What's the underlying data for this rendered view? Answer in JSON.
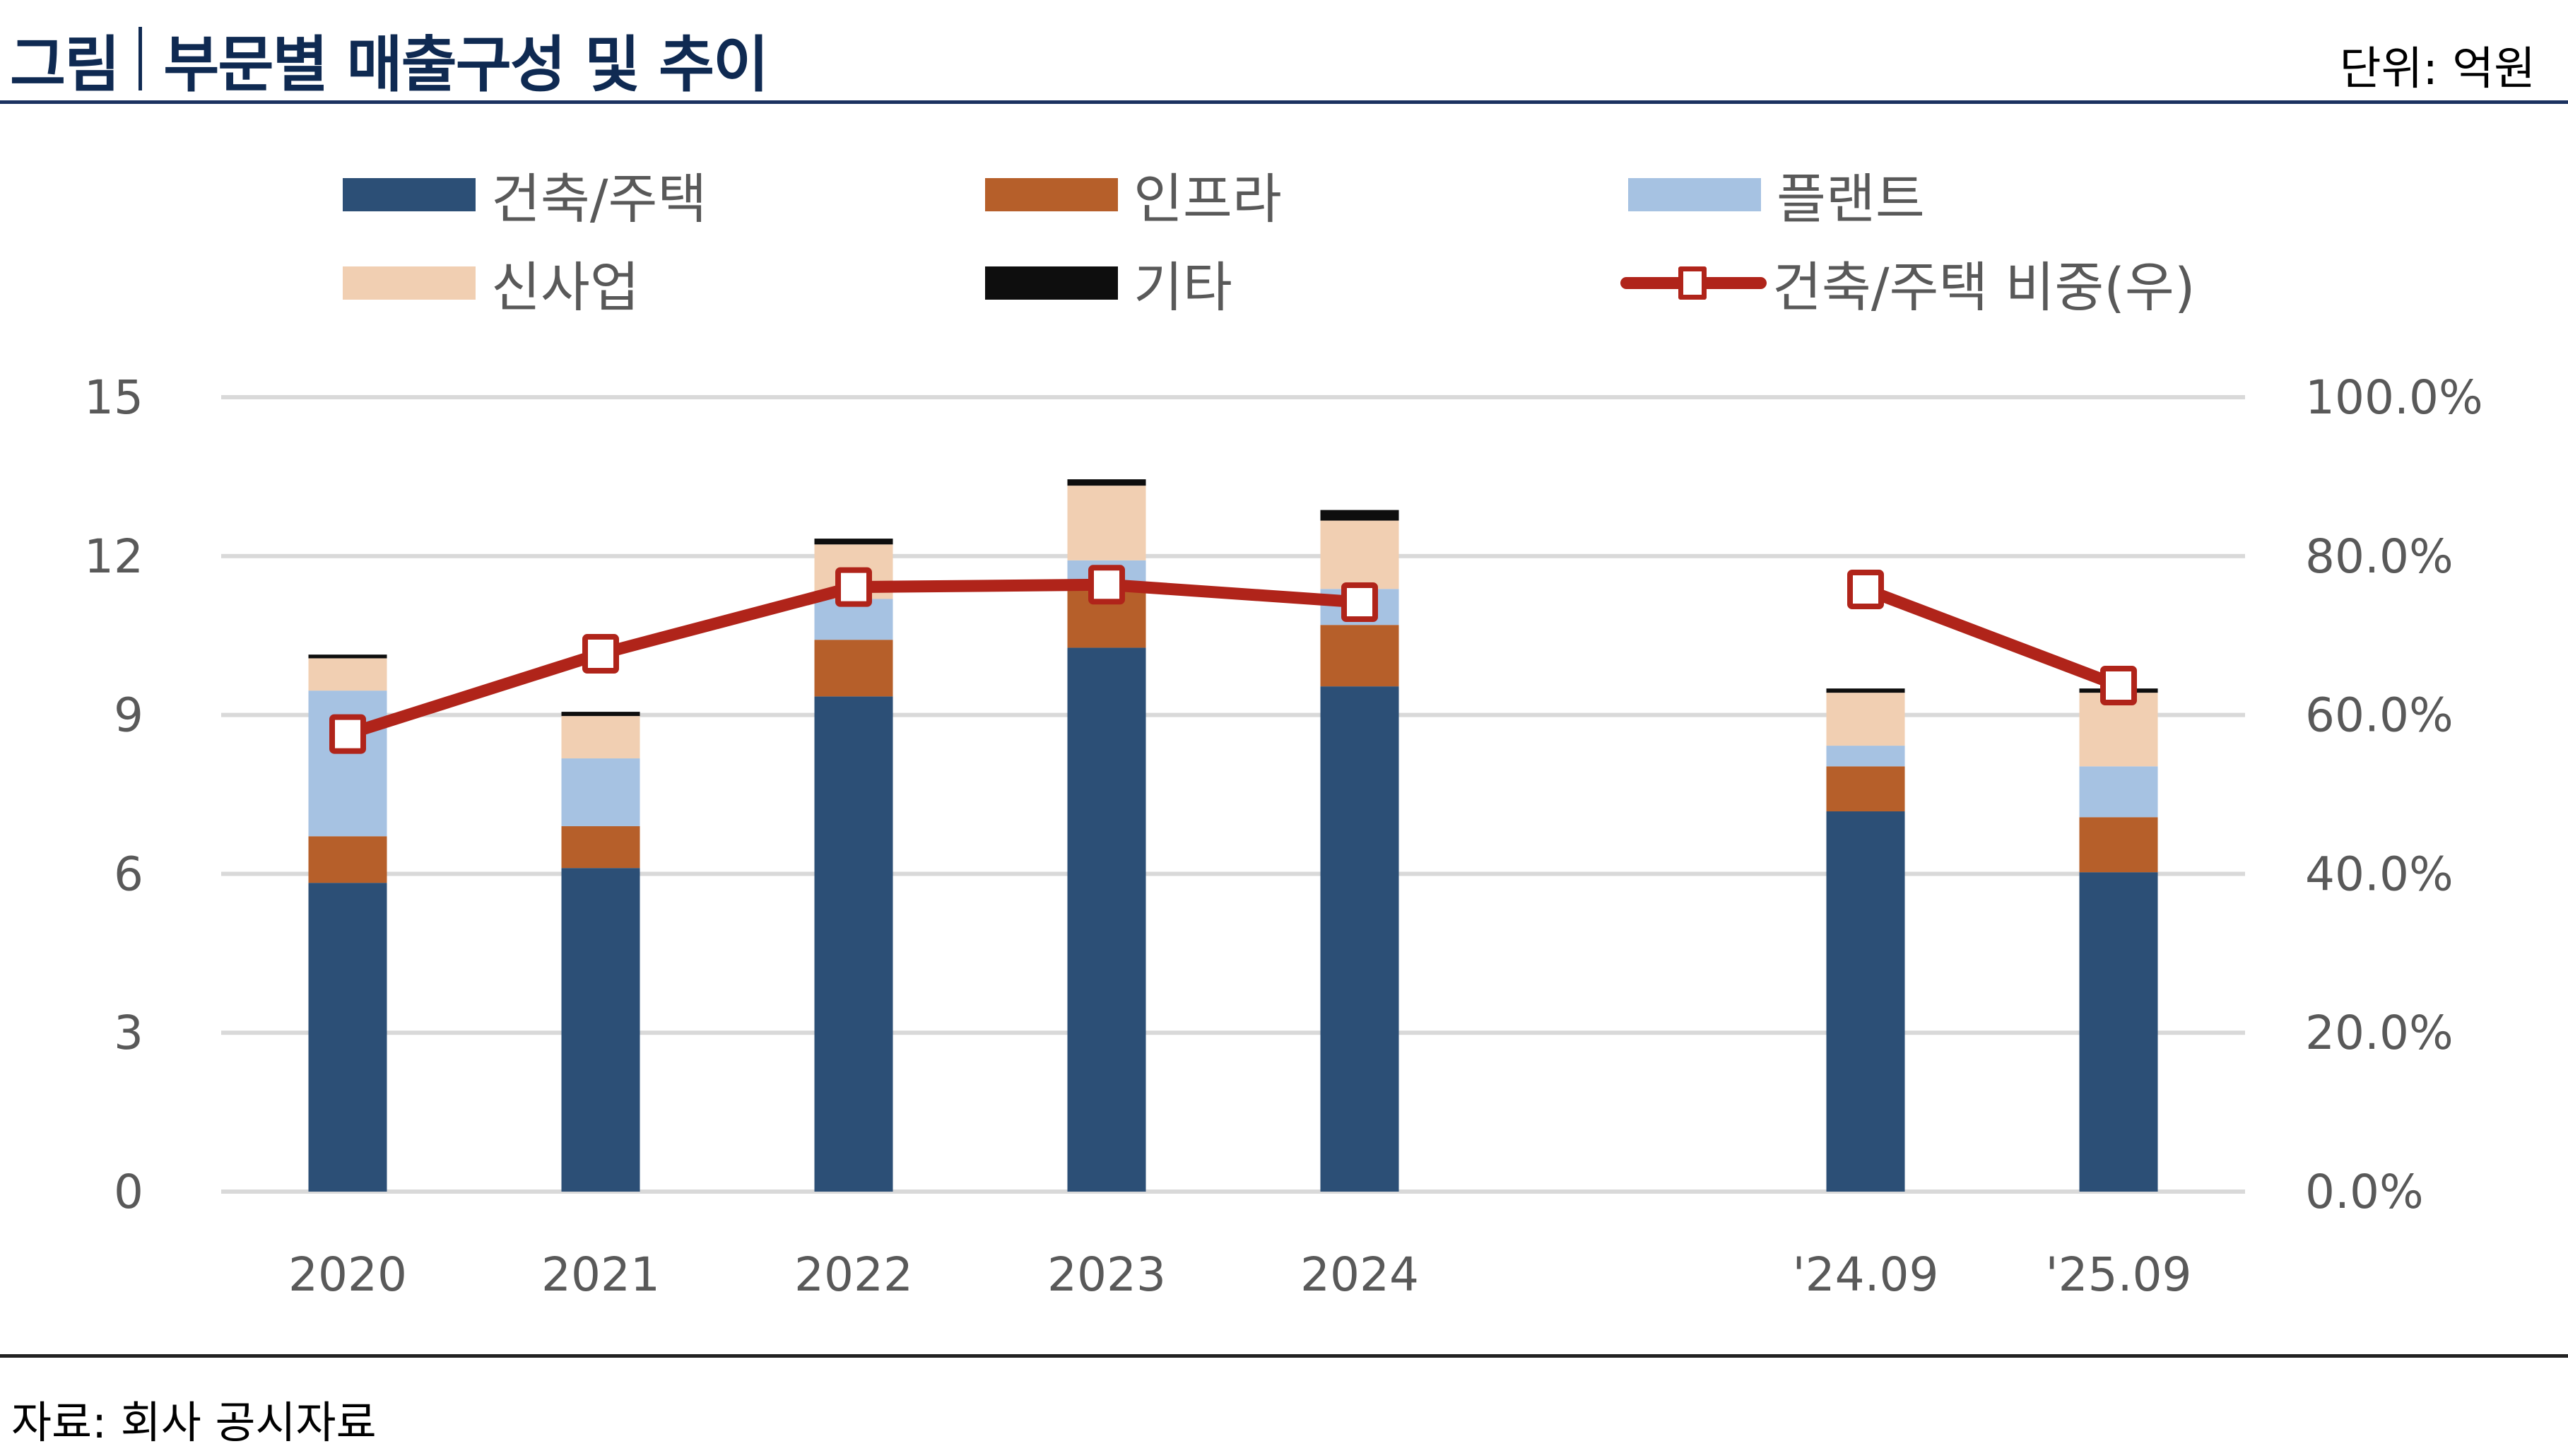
{
  "header": {
    "title_prefix": "그림",
    "title": "부문별 매출구성 및 추이",
    "unit": "단위: 억원"
  },
  "footer": {
    "source": "자료: 회사 공시자료"
  },
  "legend": [
    {
      "label": "건축/주택",
      "color": "#2c4f76",
      "kind": "bar"
    },
    {
      "label": "인프라",
      "color": "#b65f2a",
      "kind": "bar"
    },
    {
      "label": "플랜트",
      "color": "#a6c2e2",
      "kind": "bar"
    },
    {
      "label": "신사업",
      "color": "#f1cfb2",
      "kind": "bar"
    },
    {
      "label": "기타",
      "color": "#0e0e0e",
      "kind": "bar"
    },
    {
      "label": "건축/주택 비중(우)",
      "color": "#b0241a",
      "kind": "line"
    }
  ],
  "chart_data": {
    "type": "bar",
    "stacked": true,
    "title": "부문별 매출구성 및 추이",
    "categories": [
      "2020",
      "2021",
      "2022",
      "2023",
      "2024",
      "",
      "'24.09",
      "'25.09"
    ],
    "series": [
      {
        "name": "건축/주택",
        "color": "#2c4f76",
        "values": [
          5.83,
          6.11,
          9.35,
          10.27,
          9.54,
          null,
          7.18,
          6.03
        ]
      },
      {
        "name": "인프라",
        "color": "#b65f2a",
        "values": [
          0.88,
          0.79,
          1.07,
          1.19,
          1.16,
          null,
          0.85,
          1.04
        ]
      },
      {
        "name": "플랜트",
        "color": "#a6c2e2",
        "values": [
          2.75,
          1.28,
          0.77,
          0.46,
          0.68,
          null,
          0.39,
          0.96
        ]
      },
      {
        "name": "신사업",
        "color": "#f1cfb2",
        "values": [
          0.61,
          0.8,
          1.03,
          1.41,
          1.29,
          null,
          1.0,
          1.39
        ]
      },
      {
        "name": "기타",
        "color": "#0e0e0e",
        "values": [
          0.07,
          0.08,
          0.11,
          0.12,
          0.2,
          null,
          0.08,
          0.08
        ]
      }
    ],
    "line_series": {
      "name": "건축/주택 비중(우)",
      "color": "#b0241a",
      "axis": "right",
      "values": [
        57.6,
        67.7,
        76.1,
        76.4,
        74.2,
        null,
        75.8,
        63.7
      ]
    },
    "ylabel": "",
    "ylim": [
      0,
      15
    ],
    "yticks": [
      "0",
      "3",
      "6",
      "9",
      "12",
      "15"
    ],
    "y2lim": [
      0,
      100
    ],
    "y2ticks": [
      "0.0%",
      "20.0%",
      "40.0%",
      "60.0%",
      "80.0%",
      "100.0%"
    ],
    "grid": true,
    "legend_position": "top"
  }
}
